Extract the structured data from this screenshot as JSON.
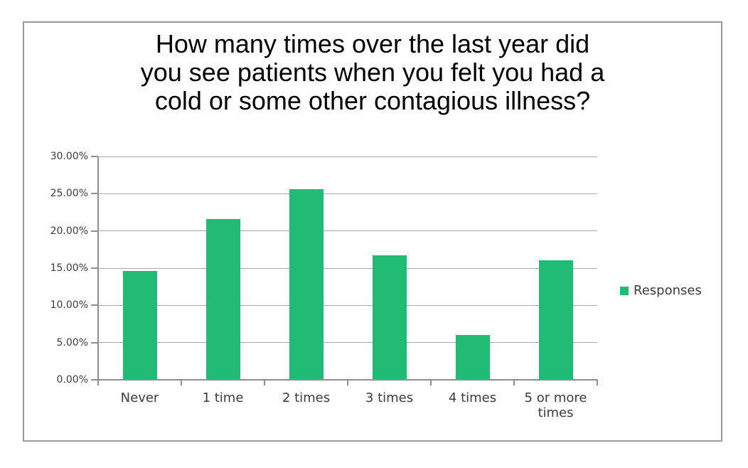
{
  "chart_data": {
    "type": "bar",
    "title": "How many times over the last year did you see patients when you felt you had a cold or some other contagious illness?",
    "title_lines": [
      "How many times over the last year did",
      "you see patients when you felt you had a",
      "cold or some other contagious illness?"
    ],
    "categories": [
      "Never",
      "1 time",
      "2 times",
      "3 times",
      "4 times",
      "5 or more times"
    ],
    "series": [
      {
        "name": "Responses",
        "values": [
          14.5,
          21.5,
          25.5,
          16.6,
          5.9,
          16.0
        ]
      }
    ],
    "xlabel": "",
    "ylabel": "",
    "y_axis": {
      "min": 0,
      "max": 30,
      "step": 5,
      "tick_labels": [
        "0.00%",
        "5.00%",
        "10.00%",
        "15.00%",
        "20.00%",
        "25.00%",
        "30.00%"
      ]
    },
    "grid": true,
    "legend": {
      "position": "right",
      "entries": [
        {
          "label": "Responses",
          "color": "#21bb76"
        }
      ]
    },
    "bar_color": "#21bb76",
    "colors": {
      "gridline": "#ababab",
      "axis": "#8f8f8f",
      "frame_border": "#9a9a9a",
      "label_text": "#3c3c3c",
      "title_text": "#000000",
      "background": "#ffffff"
    }
  }
}
